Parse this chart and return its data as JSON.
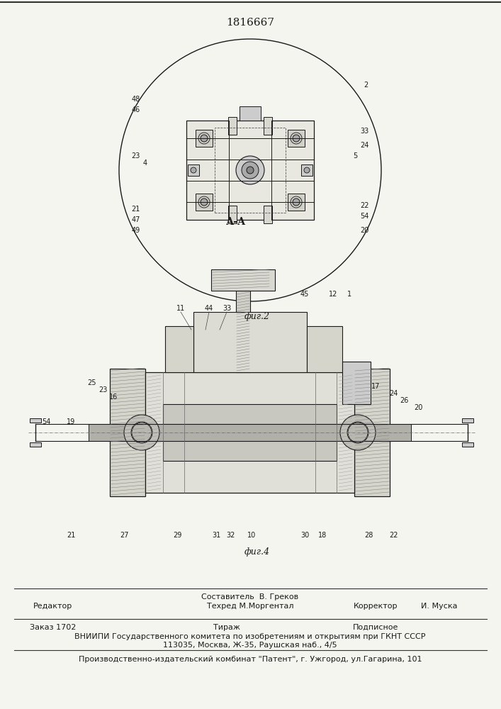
{
  "title": "1816667",
  "fig2_label": "фиг.2",
  "fig4_label": "фиг.4",
  "section_label": "А-А",
  "footer_line1": "Составитель  В. Греков",
  "footer_line2": "Редактор",
  "footer_line3": "Техред М.Моргентал",
  "footer_line4": "Корректор",
  "footer_line5": "И. Муска",
  "footer_line6": "Заказ 1702",
  "footer_line7": "Тираж",
  "footer_line8": "Подписное",
  "footer_line9": "ВНИИПИ Государственного комитета по изобретениям и открытиям при ГКНТ СССР",
  "footer_line10": "113035, Москва, Ж-35, Раушская наб., 4/5",
  "footer_line11": "Производственно-издательский комбинат \"Патент\", г. Ужгород, ул.Гагарина, 101",
  "bg_color": "#f5f5f0",
  "line_color": "#1a1a1a"
}
